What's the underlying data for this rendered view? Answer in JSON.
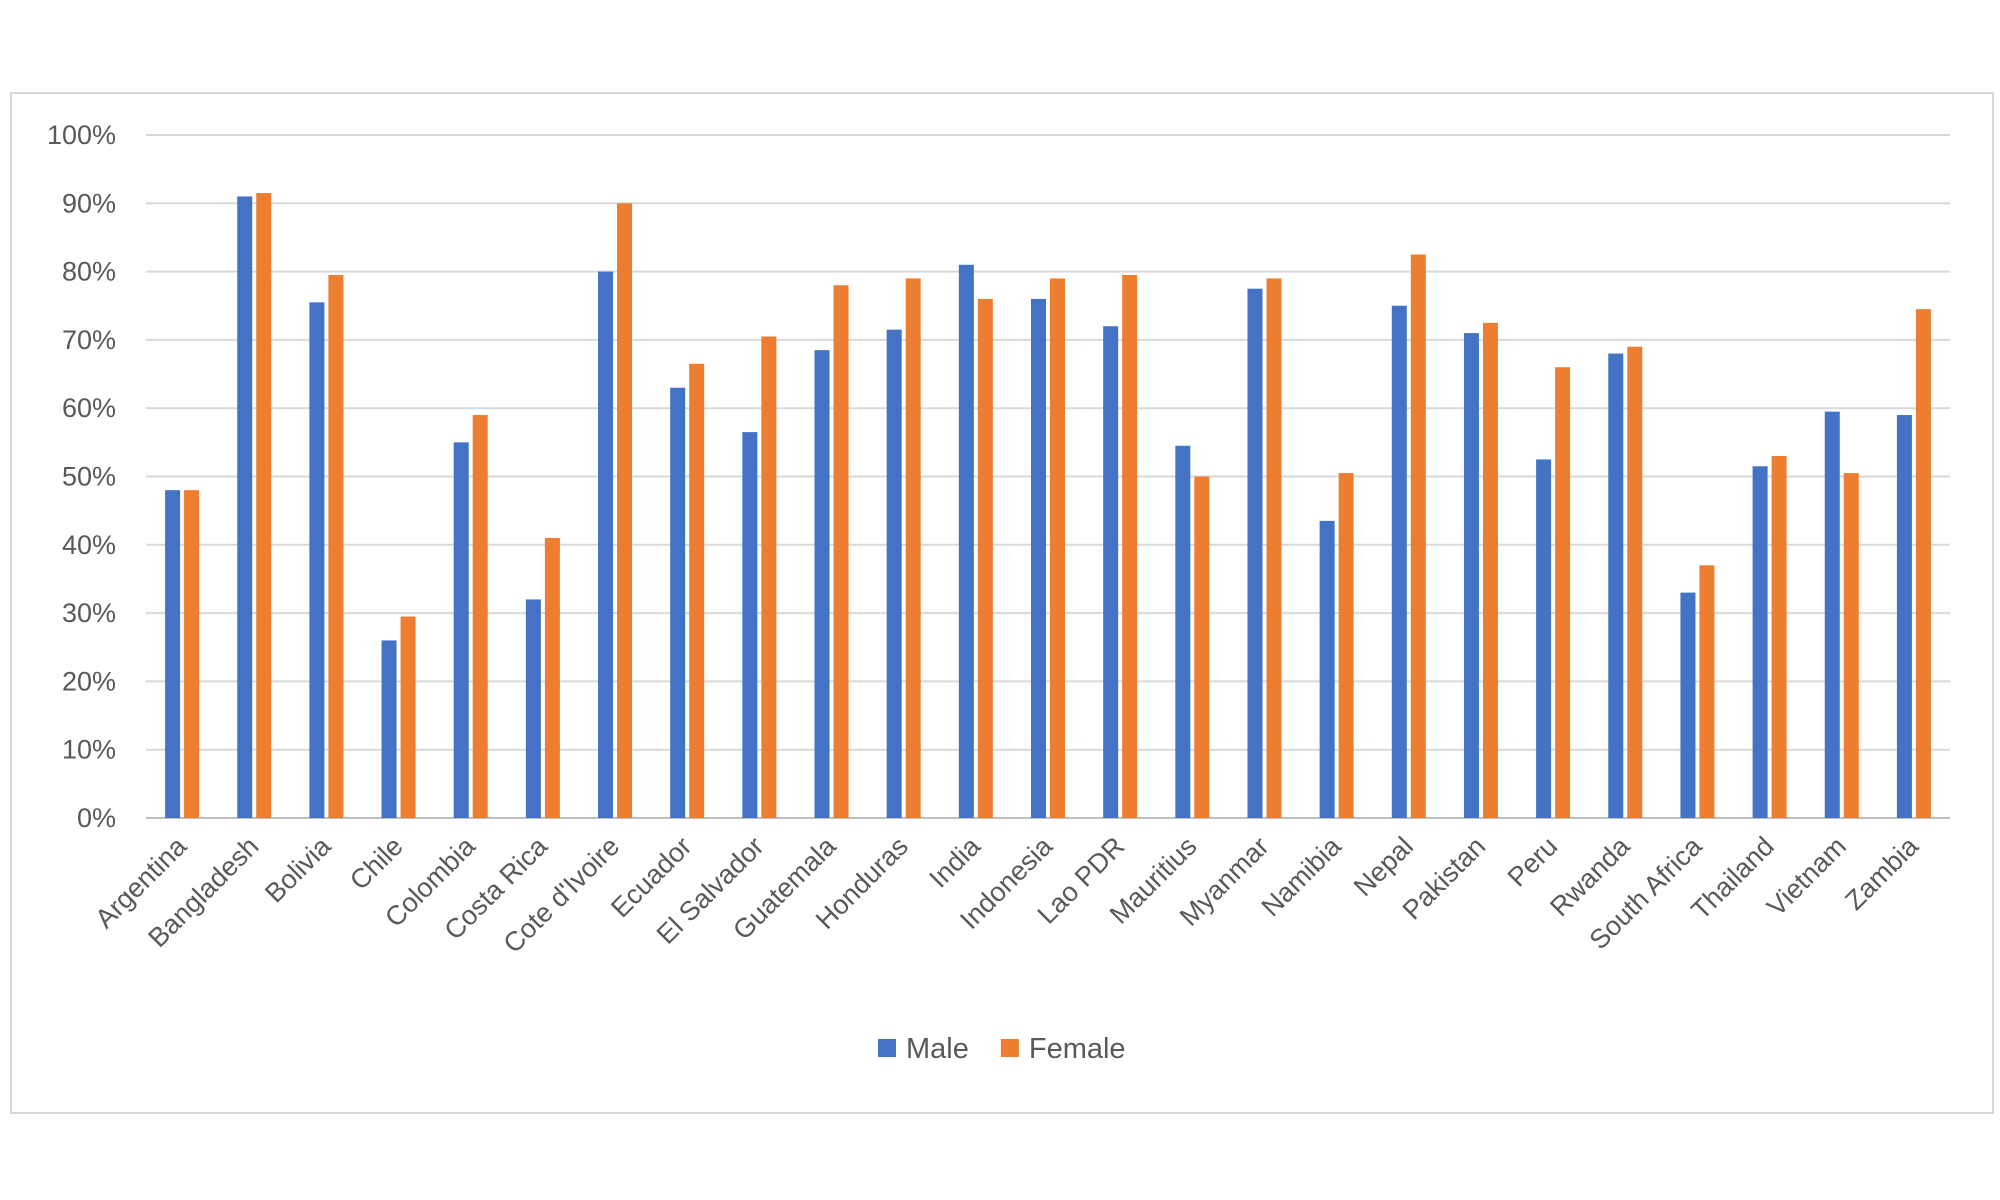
{
  "chart_data": {
    "type": "bar",
    "categories": [
      "Argentina",
      "Bangladesh",
      "Bolivia",
      "Chile",
      "Colombia",
      "Costa Rica",
      "Cote d'Ivoire",
      "Ecuador",
      "El Salvador",
      "Guatemala",
      "Honduras",
      "India",
      "Indonesia",
      "Lao PDR",
      "Mauritius",
      "Myanmar",
      "Namibia",
      "Nepal",
      "Pakistan",
      "Peru",
      "Rwanda",
      "South Africa",
      "Thailand",
      "Vietnam",
      "Zambia"
    ],
    "series": [
      {
        "name": "Male",
        "color": "#4472c4",
        "values": [
          48,
          91,
          75.5,
          26,
          55,
          32,
          80,
          63,
          56.5,
          68.5,
          71.5,
          81,
          76,
          72,
          54.5,
          77.5,
          43.5,
          75,
          71,
          52.5,
          68,
          33,
          51.5,
          59.5,
          59
        ]
      },
      {
        "name": "Female",
        "color": "#ed7d31",
        "values": [
          48,
          91.5,
          79.5,
          29.5,
          59,
          41,
          90,
          66.5,
          70.5,
          78,
          79,
          76,
          79,
          79.5,
          50,
          79,
          50.5,
          82.5,
          72.5,
          66,
          69,
          37,
          53,
          50.5,
          74.5
        ]
      }
    ],
    "y_ticks": [
      "0%",
      "10%",
      "20%",
      "30%",
      "40%",
      "50%",
      "60%",
      "70%",
      "80%",
      "90%",
      "100%"
    ],
    "ylim": [
      0,
      100
    ],
    "grid": true,
    "legend": "bottom",
    "title": "",
    "xlabel": "",
    "ylabel": ""
  }
}
